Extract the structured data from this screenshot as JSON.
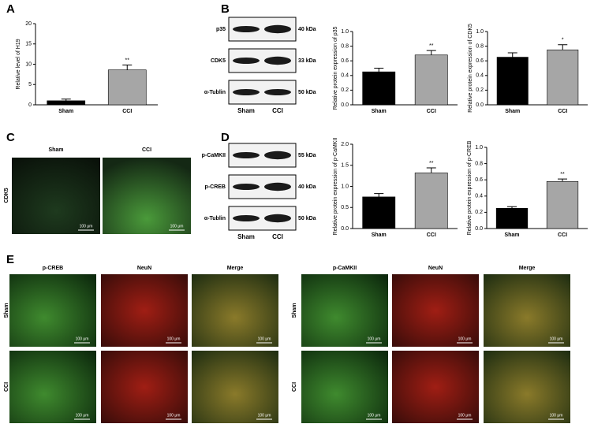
{
  "panel_labels": [
    "A",
    "B",
    "C",
    "D",
    "E"
  ],
  "chart_data": [
    {
      "type": "bar",
      "ylabel": "Relative level of H19",
      "categories": [
        "Sham",
        "CCI"
      ],
      "values": [
        1.0,
        8.6
      ],
      "errors": [
        0.4,
        1.2
      ],
      "colors": [
        "#000000",
        "#a6a6a6"
      ],
      "ylim": [
        0,
        20
      ],
      "yticks": [
        0,
        5,
        10,
        15,
        20
      ],
      "annotation": "**"
    },
    {
      "type": "bar",
      "ylabel": "Relative protein expression of p35",
      "categories": [
        "Sham",
        "CCI"
      ],
      "values": [
        0.45,
        0.68
      ],
      "errors": [
        0.05,
        0.06
      ],
      "colors": [
        "#000000",
        "#a6a6a6"
      ],
      "ylim": [
        0,
        1
      ],
      "yticks": [
        {
          "value": 0,
          "label": "0.0"
        },
        0.2,
        0.4,
        0.6,
        0.8,
        {
          "value": 1,
          "label": "1.0"
        }
      ],
      "annotation": "**"
    },
    {
      "type": "bar",
      "ylabel": "Relative protein expression of CDK5",
      "categories": [
        "Sham",
        "CCI"
      ],
      "values": [
        0.65,
        0.75
      ],
      "errors": [
        0.06,
        0.07
      ],
      "colors": [
        "#000000",
        "#a6a6a6"
      ],
      "ylim": [
        0,
        1
      ],
      "yticks": [
        {
          "value": 0,
          "label": "0.0"
        },
        0.2,
        0.4,
        0.6,
        0.8,
        {
          "value": 1,
          "label": "1.0"
        }
      ],
      "annotation": "*"
    },
    {
      "type": "bar",
      "ylabel": "Relative protein expression of p-CaMKII",
      "categories": [
        "Sham",
        "CCI"
      ],
      "values": [
        0.75,
        1.32
      ],
      "errors": [
        0.08,
        0.12
      ],
      "colors": [
        "#000000",
        "#a6a6a6"
      ],
      "ylim": [
        0,
        2
      ],
      "yticks": [
        {
          "value": 0,
          "label": "0.0"
        },
        0.5,
        {
          "value": 1,
          "label": "1.0"
        },
        1.5,
        {
          "value": 2,
          "label": "2.0"
        }
      ],
      "annotation": "**"
    },
    {
      "type": "bar",
      "ylabel": "Relative protein expression of p-CREB",
      "categories": [
        "Sham",
        "CCI"
      ],
      "values": [
        0.25,
        0.58
      ],
      "errors": [
        0.02,
        0.03
      ],
      "colors": [
        "#000000",
        "#a6a6a6"
      ],
      "ylim": [
        0,
        1
      ],
      "yticks": [
        {
          "value": 0,
          "label": "0.0"
        },
        0.2,
        0.4,
        0.6,
        0.8,
        {
          "value": 1,
          "label": "1.0"
        }
      ],
      "annotation": "**"
    }
  ],
  "blots": [
    {
      "proteins": [
        {
          "name": "p35",
          "size": "40 kDa"
        },
        {
          "name": "CDK5",
          "size": "33 kDa"
        },
        {
          "name": "α-Tublin",
          "size": "50 kDa"
        }
      ],
      "lanes": [
        "Sham",
        "CCI"
      ]
    },
    {
      "proteins": [
        {
          "name": "p-CaMKII",
          "size": "55 kDa"
        },
        {
          "name": "p-CREB",
          "size": "40 kDa"
        },
        {
          "name": "α-Tublin",
          "size": "50 kDa"
        }
      ],
      "lanes": [
        "Sham",
        "CCI"
      ]
    }
  ],
  "panel_c": {
    "columns": [
      "Sham",
      "CCI"
    ],
    "row": "CDK5",
    "scale_bar": "100 μm"
  },
  "panel_e": [
    {
      "columns": [
        "p-CREB",
        "NeuN",
        "Merge"
      ],
      "rows": [
        "Sham",
        "CCI"
      ],
      "scale_bar": "100 μm"
    },
    {
      "columns": [
        "p-CaMKII",
        "NeuN",
        "Merge"
      ],
      "rows": [
        "Sham",
        "CCI"
      ],
      "scale_bar": "100 μm"
    }
  ]
}
